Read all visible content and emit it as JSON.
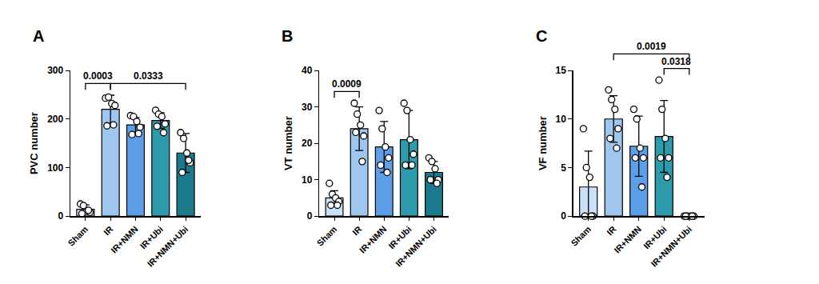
{
  "chart_data": [
    {
      "type": "bar",
      "title": "A",
      "ylabel": "PVC number",
      "categories": [
        "Sham",
        "IR",
        "IR+NMN",
        "IR+Ubi",
        "IR+NMN+Ubi"
      ],
      "values": [
        14,
        220,
        188,
        197,
        130
      ],
      "error_bars": [
        9,
        29,
        15,
        16,
        40
      ],
      "points": [
        [
          25,
          22,
          10,
          8,
          5,
          12
        ],
        [
          243,
          245,
          232,
          228,
          186,
          188
        ],
        [
          207,
          205,
          195,
          183,
          168,
          170
        ],
        [
          218,
          210,
          205,
          190,
          185,
          172
        ],
        [
          172,
          160,
          130,
          110,
          90,
          115
        ]
      ],
      "colors": [
        "#c9e0f7",
        "#9fc6ef",
        "#5d9ee8",
        "#2e9bad",
        "#1b7b8c"
      ],
      "marker": "circle",
      "ylim": [
        0,
        300
      ],
      "yticks": [
        0,
        100,
        200,
        300
      ],
      "grid": false,
      "significance": [
        {
          "from": "Sham",
          "to": "IR",
          "label": "0.0003"
        },
        {
          "from": "IR",
          "to": "IR+NMN+Ubi",
          "label": "0.0333"
        }
      ]
    },
    {
      "type": "bar",
      "title": "B",
      "ylabel": "VT number",
      "categories": [
        "Sham",
        "IR",
        "IR+NMN",
        "IR+Ubi",
        "IR+NMN+Ubi"
      ],
      "values": [
        5,
        24,
        19,
        21,
        12
      ],
      "error_bars": [
        2,
        6,
        7,
        8,
        3
      ],
      "points": [
        [
          9,
          6,
          5,
          4,
          3,
          3
        ],
        [
          31,
          28,
          25,
          22,
          23,
          15
        ],
        [
          29,
          24,
          19,
          16,
          14,
          12
        ],
        [
          31,
          29,
          21,
          17,
          14,
          14
        ],
        [
          16,
          15,
          13,
          10,
          10,
          9
        ]
      ],
      "colors": [
        "#c9e0f7",
        "#9fc6ef",
        "#5d9ee8",
        "#2e9bad",
        "#1b7b8c"
      ],
      "marker": "circle",
      "ylim": [
        0,
        40
      ],
      "yticks": [
        0,
        10,
        20,
        30,
        40
      ],
      "grid": false,
      "significance": [
        {
          "from": "Sham",
          "to": "IR",
          "label": "0.0009"
        }
      ]
    },
    {
      "type": "bar",
      "title": "C",
      "ylabel": "VF number",
      "categories": [
        "Sham",
        "IR",
        "IR+NMN",
        "IR+Ubi",
        "IR+NMN+Ubi"
      ],
      "values": [
        3,
        10,
        7.2,
        8.2,
        0
      ],
      "error_bars": [
        3.7,
        2.4,
        3.1,
        3.7,
        0
      ],
      "points": [
        [
          9,
          5,
          4,
          0,
          0,
          0
        ],
        [
          13,
          12,
          11,
          9,
          8,
          7
        ],
        [
          11,
          10,
          7,
          6,
          6,
          3
        ],
        [
          14,
          11,
          8,
          6,
          6,
          4
        ],
        [
          0,
          0,
          0,
          0,
          0,
          0
        ]
      ],
      "colors": [
        "#c9e0f7",
        "#9fc6ef",
        "#5d9ee8",
        "#2e9bad",
        "#1b7b8c"
      ],
      "marker": "circle",
      "ylim": [
        0,
        15
      ],
      "yticks": [
        0,
        5,
        10,
        15
      ],
      "grid": false,
      "significance": [
        {
          "from": "IR",
          "to": "IR+NMN+Ubi",
          "label": "0.0019"
        },
        {
          "from": "IR+Ubi",
          "to": "IR+NMN+Ubi",
          "label": "0.0318"
        }
      ]
    }
  ]
}
